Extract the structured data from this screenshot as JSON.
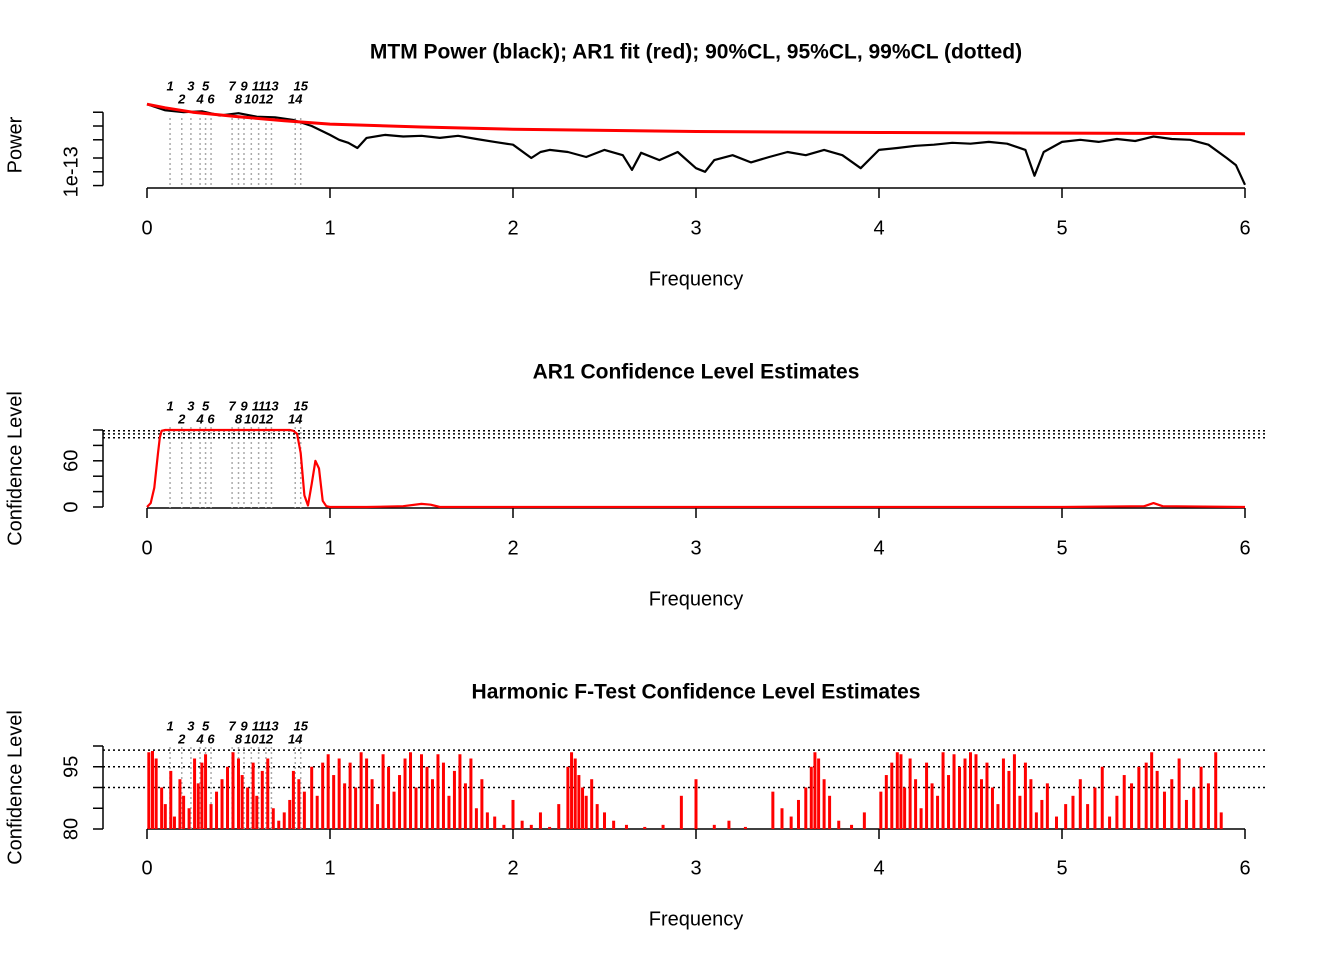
{
  "chart_data": [
    {
      "type": "line",
      "title": "MTM Power (black); AR1 fit (red); 90%CL, 95%CL, 99%CL (dotted)",
      "xlabel": "Frequency",
      "ylabel": "Power",
      "log_y": true,
      "xlim": [
        0,
        6
      ],
      "xticks": [
        0,
        1,
        2,
        3,
        4,
        5,
        6
      ],
      "ylim": [
        4e-14,
        3.7e-12
      ],
      "yticks": [
        1e-13
      ],
      "minor_yticks": [
        5e-14,
        2e-13,
        5e-13,
        1e-12,
        2e-12
      ],
      "peak_labels": [
        "1",
        "2",
        "3",
        "4",
        "5",
        "6",
        "7",
        "8",
        "9",
        "10",
        "11",
        "12",
        "13",
        "14",
        "15"
      ],
      "peak_freqs": [
        0.126,
        0.19,
        0.24,
        0.29,
        0.32,
        0.35,
        0.465,
        0.5,
        0.53,
        0.57,
        0.61,
        0.65,
        0.68,
        0.81,
        0.84
      ],
      "series": [
        {
          "color": "#000000",
          "x": [
            0,
            0.1,
            0.2,
            0.3,
            0.4,
            0.5,
            0.6,
            0.7,
            0.8,
            0.9,
            1.0,
            1.05,
            1.1,
            1.15,
            1.2,
            1.3,
            1.4,
            1.5,
            1.6,
            1.7,
            1.8,
            1.9,
            2.0,
            2.1,
            2.15,
            2.2,
            2.3,
            2.4,
            2.5,
            2.6,
            2.65,
            2.7,
            2.8,
            2.9,
            3.0,
            3.05,
            3.1,
            3.2,
            3.3,
            3.4,
            3.5,
            3.6,
            3.7,
            3.8,
            3.9,
            4.0,
            4.1,
            4.2,
            4.3,
            4.4,
            4.5,
            4.6,
            4.7,
            4.8,
            4.85,
            4.9,
            5.0,
            5.1,
            5.2,
            5.3,
            5.4,
            5.5,
            5.6,
            5.7,
            5.8,
            5.9,
            5.95,
            6.0
          ],
          "values": [
            3e-12,
            2.2e-12,
            2e-12,
            2.1e-12,
            1.7e-12,
            1.9e-12,
            1.6e-12,
            1.55e-12,
            1.35e-12,
            1e-12,
            6.4e-13,
            5e-13,
            4.3e-13,
            3.3e-13,
            5.5e-13,
            6.4e-13,
            5.9e-13,
            6.1e-13,
            5.5e-13,
            6.1e-13,
            5.2e-13,
            4.5e-13,
            3.9e-13,
            2e-13,
            2.7e-13,
            3e-13,
            2.7e-13,
            2.1e-13,
            3e-13,
            2.3e-13,
            1.1e-13,
            2.6e-13,
            1.8e-13,
            2.7e-13,
            1.2e-13,
            1e-13,
            1.8e-13,
            2.3e-13,
            1.6e-13,
            2.1e-13,
            2.7e-13,
            2.3e-13,
            3e-13,
            2.3e-13,
            1.2e-13,
            3e-13,
            3.3e-13,
            3.7e-13,
            3.9e-13,
            4.3e-13,
            4.1e-13,
            4.5e-13,
            4.1e-13,
            3e-13,
            8.2e-14,
            2.7e-13,
            4.5e-13,
            5e-13,
            4.5e-13,
            5.2e-13,
            4.7e-13,
            5.9e-13,
            5.2e-13,
            5e-13,
            3.9e-13,
            2e-13,
            1.4e-13,
            5.2e-14
          ]
        },
        {
          "color": "#ff0000",
          "x": [
            0,
            0.1,
            0.25,
            0.5,
            0.75,
            1,
            1.5,
            2,
            3,
            4,
            5,
            6
          ],
          "values": [
            3e-12,
            2.5e-12,
            2e-12,
            1.6e-12,
            1.3e-12,
            1.1e-12,
            9.5e-13,
            8.5e-13,
            7.6e-13,
            7.2e-13,
            7e-13,
            6.8e-13
          ]
        }
      ]
    },
    {
      "type": "line",
      "title": "AR1 Confidence Level Estimates",
      "xlabel": "Frequency",
      "ylabel": "Confidence Level",
      "xlim": [
        0,
        6
      ],
      "xticks": [
        0,
        1,
        2,
        3,
        4,
        5,
        6
      ],
      "ylim": [
        0,
        100
      ],
      "yticks": [
        0,
        60
      ],
      "minor_yticks": [
        20,
        40,
        80,
        100
      ],
      "cl_levels": [
        90,
        95,
        99
      ],
      "peak_labels": [
        "1",
        "2",
        "3",
        "4",
        "5",
        "6",
        "7",
        "8",
        "9",
        "10",
        "11",
        "12",
        "13",
        "14",
        "15"
      ],
      "peak_freqs": [
        0.126,
        0.19,
        0.24,
        0.29,
        0.32,
        0.35,
        0.465,
        0.5,
        0.53,
        0.57,
        0.61,
        0.65,
        0.68,
        0.81,
        0.84
      ],
      "series": [
        {
          "color": "#ff0000",
          "x": [
            0,
            0.02,
            0.04,
            0.06,
            0.07,
            0.08,
            0.1,
            0.2,
            0.4,
            0.6,
            0.78,
            0.8,
            0.82,
            0.84,
            0.86,
            0.88,
            0.9,
            0.92,
            0.94,
            0.96,
            0.98,
            1.0,
            1.2,
            1.4,
            1.5,
            1.55,
            1.6,
            2,
            3,
            4,
            5,
            5.45,
            5.5,
            5.55,
            6
          ],
          "values": [
            0,
            5,
            25,
            70,
            90,
            99,
            100,
            100,
            100,
            100,
            100,
            99,
            95,
            70,
            15,
            2,
            30,
            60,
            50,
            8,
            1,
            0,
            0,
            1,
            4,
            3,
            0,
            0,
            0,
            0,
            0,
            1,
            5,
            1,
            0
          ]
        }
      ]
    },
    {
      "type": "bar",
      "title": "Harmonic F-Test Confidence Level Estimates",
      "xlabel": "Frequency",
      "ylabel": "Confidence Level",
      "xlim": [
        0,
        6
      ],
      "xticks": [
        0,
        1,
        2,
        3,
        4,
        5,
        6
      ],
      "ylim": [
        80,
        100
      ],
      "yticks": [
        80,
        95
      ],
      "minor_yticks": [
        85,
        90,
        100
      ],
      "cl_levels": [
        90,
        95,
        99
      ],
      "peak_labels": [
        "1",
        "2",
        "3",
        "4",
        "5",
        "6",
        "7",
        "8",
        "9",
        "10",
        "11",
        "12",
        "13",
        "14",
        "15"
      ],
      "peak_freqs": [
        0.126,
        0.19,
        0.24,
        0.29,
        0.32,
        0.35,
        0.465,
        0.5,
        0.53,
        0.57,
        0.61,
        0.65,
        0.68,
        0.81,
        0.84
      ],
      "series": [
        {
          "color": "#ff0000",
          "x": [
            0.01,
            0.03,
            0.05,
            0.08,
            0.1,
            0.13,
            0.15,
            0.18,
            0.2,
            0.23,
            0.26,
            0.28,
            0.3,
            0.32,
            0.35,
            0.38,
            0.41,
            0.44,
            0.47,
            0.5,
            0.52,
            0.55,
            0.58,
            0.6,
            0.63,
            0.66,
            0.69,
            0.72,
            0.75,
            0.78,
            0.8,
            0.83,
            0.86,
            0.9,
            0.93,
            0.96,
            0.99,
            1.02,
            1.05,
            1.08,
            1.11,
            1.14,
            1.17,
            1.2,
            1.23,
            1.26,
            1.29,
            1.32,
            1.35,
            1.38,
            1.41,
            1.44,
            1.47,
            1.5,
            1.53,
            1.56,
            1.59,
            1.62,
            1.65,
            1.68,
            1.71,
            1.74,
            1.77,
            1.8,
            1.83,
            1.86,
            1.9,
            1.95,
            2.0,
            2.05,
            2.1,
            2.15,
            2.2,
            2.25,
            2.3,
            2.32,
            2.34,
            2.36,
            2.38,
            2.4,
            2.43,
            2.46,
            2.5,
            2.55,
            2.62,
            2.72,
            2.82,
            2.92,
            3.0,
            3.1,
            3.18,
            3.27,
            3.42,
            3.47,
            3.52,
            3.56,
            3.6,
            3.63,
            3.65,
            3.67,
            3.7,
            3.73,
            3.78,
            3.85,
            3.92,
            4.01,
            4.04,
            4.07,
            4.1,
            4.12,
            4.14,
            4.17,
            4.2,
            4.23,
            4.26,
            4.29,
            4.32,
            4.35,
            4.38,
            4.41,
            4.44,
            4.47,
            4.5,
            4.53,
            4.56,
            4.59,
            4.62,
            4.65,
            4.68,
            4.71,
            4.74,
            4.77,
            4.8,
            4.83,
            4.86,
            4.89,
            4.92,
            4.97,
            5.02,
            5.06,
            5.1,
            5.14,
            5.18,
            5.22,
            5.26,
            5.3,
            5.34,
            5.38,
            5.42,
            5.46,
            5.49,
            5.52,
            5.56,
            5.6,
            5.64,
            5.68,
            5.72,
            5.76,
            5.8,
            5.84,
            5.87
          ],
          "values": [
            98.5,
            98.8,
            97,
            90,
            86,
            94,
            83,
            92,
            88,
            85,
            97,
            91,
            96,
            98,
            86,
            89,
            92,
            95,
            98.5,
            97,
            93,
            90,
            96,
            88,
            94,
            97,
            85,
            82,
            84,
            87,
            94,
            92,
            89,
            95,
            88,
            96,
            98,
            93,
            97,
            91,
            96,
            90,
            98.5,
            97,
            92,
            86,
            98,
            95,
            89,
            93,
            97,
            98.5,
            90,
            98,
            95,
            92,
            98,
            96,
            88,
            94,
            98,
            91,
            97,
            85,
            92,
            84,
            83,
            81,
            87,
            82,
            81,
            84,
            80.5,
            86,
            95,
            98.5,
            97,
            93,
            90,
            88,
            92,
            86,
            84,
            82,
            81,
            80.5,
            81,
            88,
            92,
            81,
            82,
            80.5,
            89,
            85,
            83,
            87,
            90,
            95,
            98.5,
            97,
            92,
            88,
            82,
            81,
            84,
            89,
            93,
            96,
            98.5,
            98,
            90,
            97,
            92,
            85,
            96,
            91,
            88,
            98.5,
            93,
            98,
            95,
            97,
            98.5,
            98,
            92,
            96,
            90,
            86,
            97,
            94,
            98,
            88,
            96,
            92,
            84,
            87,
            91,
            83,
            86,
            88,
            92,
            86,
            90,
            95,
            83,
            88,
            93,
            91,
            95,
            96,
            98.5,
            94,
            89,
            92,
            97,
            87,
            90,
            95,
            91,
            98.5,
            84
          ]
        }
      ]
    }
  ]
}
